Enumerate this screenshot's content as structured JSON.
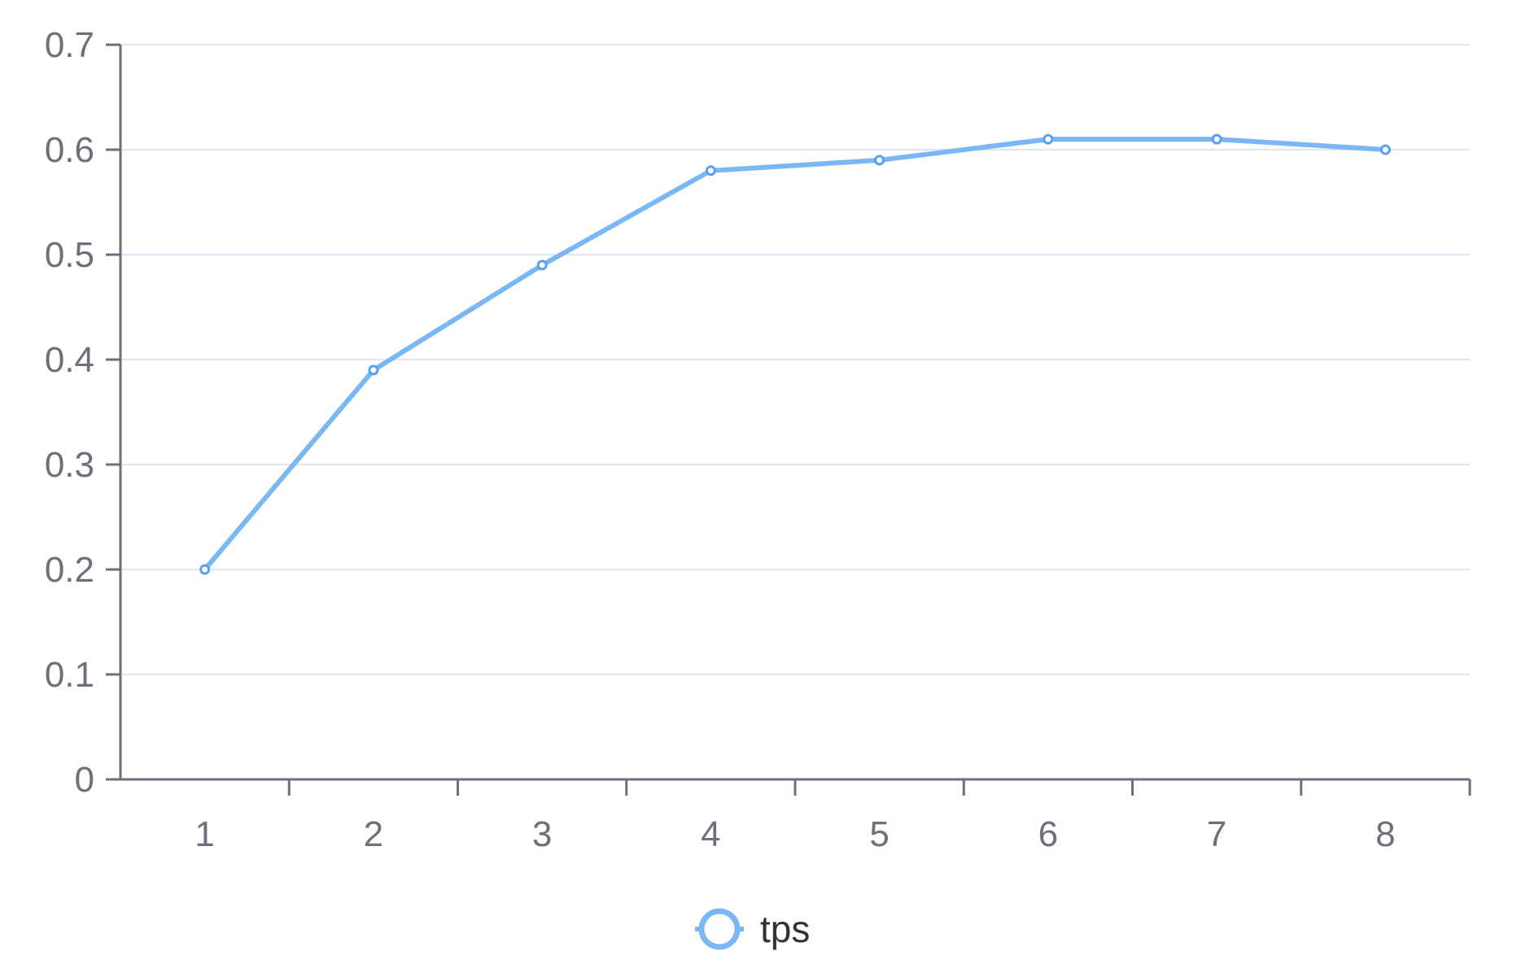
{
  "chart_data": {
    "type": "line",
    "x": [
      1,
      2,
      3,
      4,
      5,
      6,
      7,
      8
    ],
    "categories": [
      "1",
      "2",
      "3",
      "4",
      "5",
      "6",
      "7",
      "8"
    ],
    "series": [
      {
        "name": "tps",
        "values": [
          0.2,
          0.39,
          0.49,
          0.58,
          0.59,
          0.61,
          0.61,
          0.6
        ],
        "color": "#7ab8f5"
      }
    ],
    "yticks": [
      "0",
      "0.1",
      "0.2",
      "0.3",
      "0.4",
      "0.5",
      "0.6",
      "0.7"
    ],
    "ylim": [
      0,
      0.7
    ],
    "grid": true,
    "legend_position": "bottom-center",
    "colors": {
      "axis": "#6e7079",
      "grid": "#e0e6f1",
      "line": "#7ab8f5",
      "point": "#5b9ff0"
    }
  }
}
